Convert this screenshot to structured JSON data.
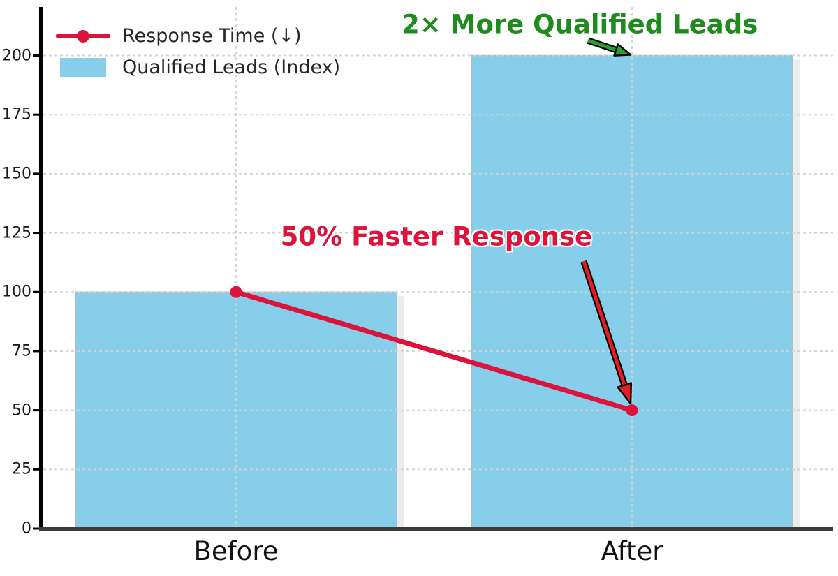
{
  "figure": {
    "background": "#ffffff",
    "colors": {
      "bar": "#87CEEB",
      "bar_edge": "#b3babd",
      "bar_shadow": "#e9edec",
      "line": "#DC143C",
      "grid": "#d2d2d2",
      "spine_left": "#000000",
      "spine_bottom": "#3b3b3b",
      "tick": "#000000",
      "tick_label": "#1a1a1a",
      "legend_text": "#262626"
    },
    "legend": {
      "items": [
        {
          "label": "Response Time (↓)",
          "marker": "line-dot",
          "color": "#DC143C"
        },
        {
          "label": "Qualified Leads (Index)",
          "marker": "rect",
          "color": "#87CEEB"
        }
      ]
    }
  },
  "chart_data": {
    "type": "bar",
    "title": "",
    "xlabel": "",
    "ylabel": "",
    "categories": [
      "Before",
      "After"
    ],
    "series": [
      {
        "name": "Qualified Leads (Index)",
        "type": "bar",
        "values": [
          100,
          200
        ],
        "color": "#87CEEB"
      },
      {
        "name": "Response Time (↓)",
        "type": "line",
        "values": [
          100,
          50
        ],
        "color": "#DC143C",
        "marker": "o"
      }
    ],
    "ylim": [
      0,
      220
    ],
    "yticks": [
      0,
      25,
      50,
      75,
      100,
      125,
      150,
      175,
      200
    ],
    "grid": {
      "show": true,
      "style": "dashed",
      "axes": "both",
      "above_bars": true
    },
    "legend_position": "upper-left",
    "annotations": [
      {
        "text": "2× More Qualified Leads",
        "color": "#1d8c1d",
        "arrow_color": "#2aa02c",
        "text_xy": [
          0.868,
          213
        ],
        "arrow_from": [
          0.889,
          206.3
        ],
        "arrow_to": [
          0.9965,
          200.3
        ]
      },
      {
        "text": "50% Faster Response",
        "color": "#DC143C",
        "arrow_color": "#ea1c23",
        "text_xy": [
          0.506,
          123.5
        ],
        "arrow_from": [
          0.878,
          113
        ],
        "arrow_to": [
          0.9965,
          52.8
        ]
      }
    ]
  }
}
